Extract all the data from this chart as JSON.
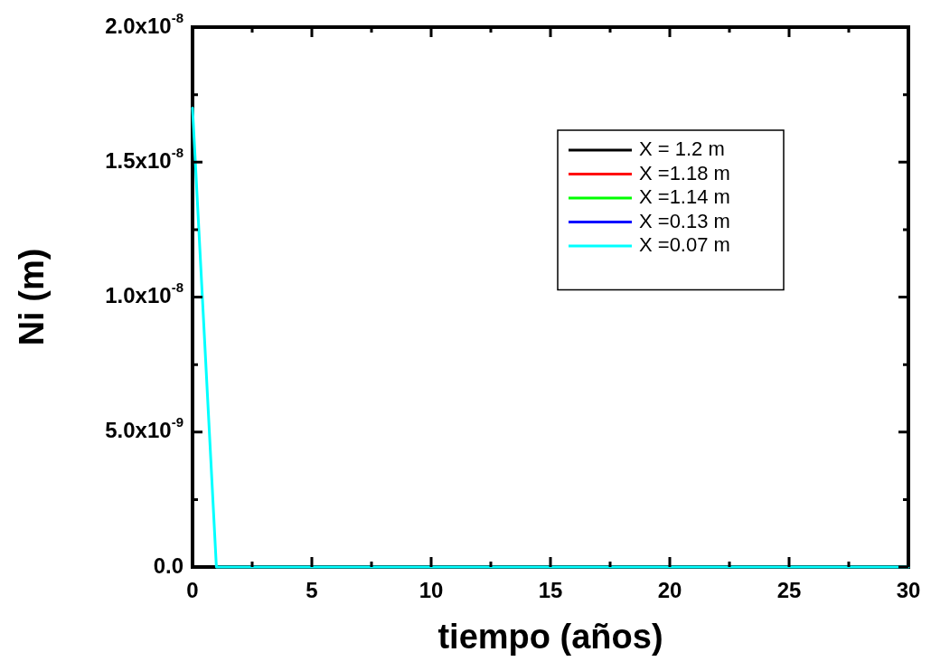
{
  "chart_data": {
    "type": "line",
    "xlabel": "tiempo (años)",
    "ylabel": "Ni (m)",
    "x": [
      0,
      1,
      30
    ],
    "series": [
      {
        "name": "X = 1.2 m",
        "color": "#000000",
        "values": [
          null,
          null,
          null
        ]
      },
      {
        "name": "X =1.18 m",
        "color": "#ff0000",
        "values": [
          null,
          null,
          null
        ]
      },
      {
        "name": "X =1.14 m",
        "color": "#00ff00",
        "values": [
          null,
          null,
          null
        ]
      },
      {
        "name": "X =0.13 m",
        "color": "#0000ff",
        "values": [
          null,
          null,
          null
        ]
      },
      {
        "name": "X =0.07 m",
        "color": "#00ffff",
        "values": [
          1.7e-08,
          0,
          0
        ]
      }
    ],
    "xlim": [
      0,
      30
    ],
    "xticks": [
      0,
      {
        "value": 2.5,
        "label": null
      },
      5,
      {
        "value": 7.5,
        "label": null
      },
      10,
      {
        "value": 12.5,
        "label": null
      },
      15,
      {
        "value": 17.5,
        "label": null
      },
      20,
      {
        "value": 22.5,
        "label": null
      },
      25,
      {
        "value": 27.5,
        "label": null
      },
      30
    ],
    "ylim": [
      0,
      2e-08
    ],
    "yticks": [
      {
        "value": 0,
        "label": "0.0"
      },
      {
        "value": 2.5e-09,
        "label": null
      },
      {
        "value": 5e-09,
        "label": "5.0x10$^{-9}$"
      },
      {
        "value": 7.5e-09,
        "label": null
      },
      {
        "value": 1e-08,
        "label": "1.0x10$^{-8}$"
      },
      {
        "value": 1.25e-08,
        "label": null
      },
      {
        "value": 1.5e-08,
        "label": "1.5x10$^{-8}$"
      },
      {
        "value": 1.75e-08,
        "label": null
      },
      {
        "value": 2e-08,
        "label": "2.0x10$^{-8}$"
      }
    ],
    "grid": false,
    "legend": "top right",
    "marker": "none",
    "line_style": "solid"
  }
}
